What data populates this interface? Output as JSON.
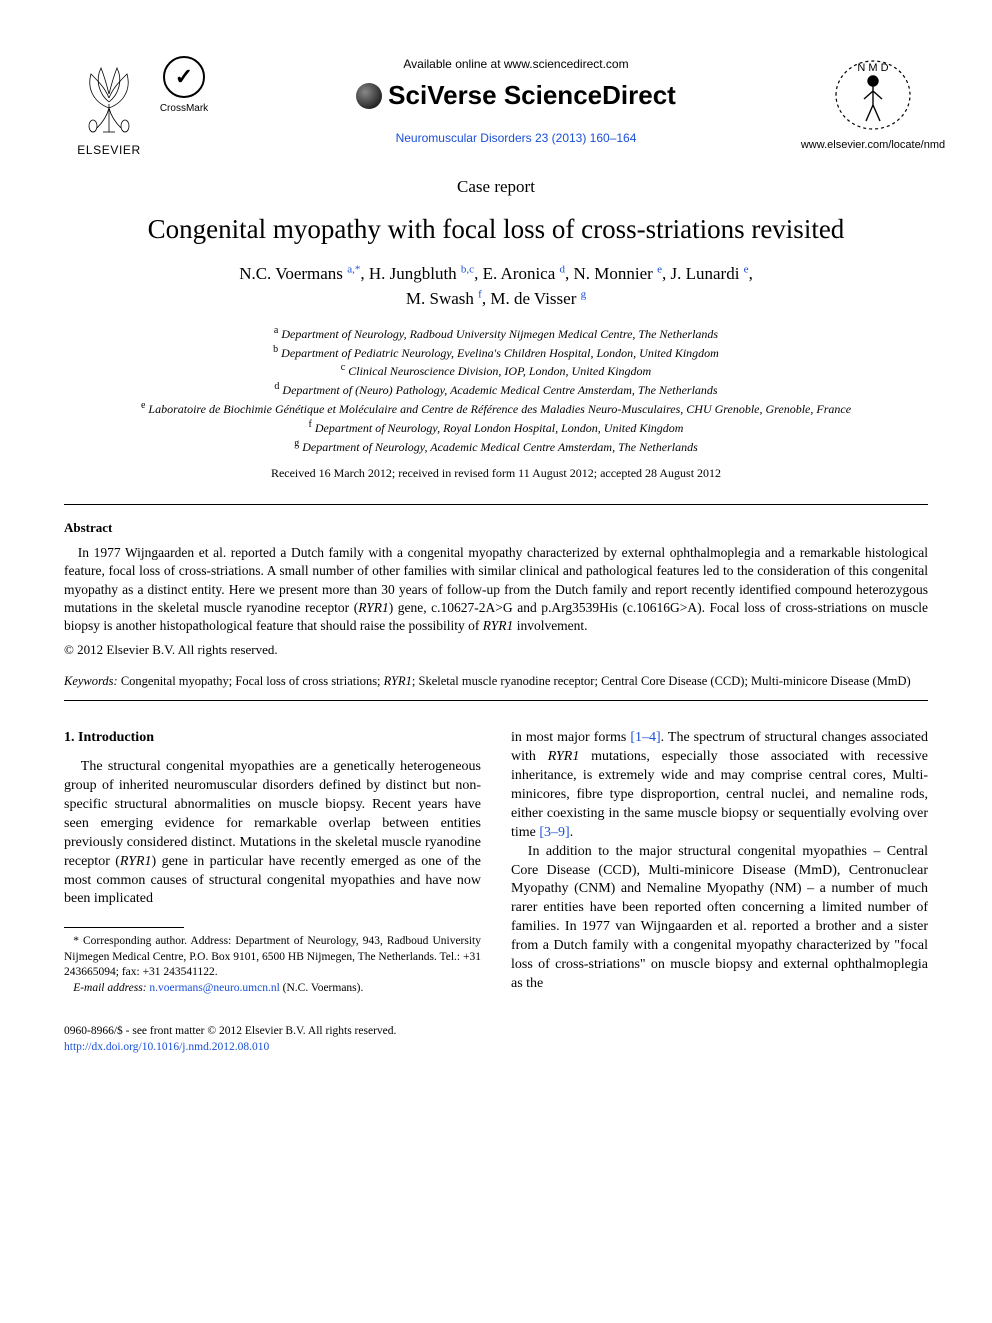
{
  "header": {
    "available_at": "Available online at www.sciencedirect.com",
    "brand": "SciVerse ScienceDirect",
    "journal_ref": "Neuromuscular Disorders 23 (2013) 160–164",
    "elsevier_label": "ELSEVIER",
    "crossmark_label": "CrossMark",
    "site_url": "www.elsevier.com/locate/nmd",
    "nmd_top": "N M D"
  },
  "article": {
    "type": "Case report",
    "title": "Congenital myopathy with focal loss of cross-striations revisited",
    "authors_html": "N.C. Voermans <sup>a,*</sup>, H. Jungbluth <sup>b,c</sup>, E. Aronica <sup>d</sup>, N. Monnier <sup>e</sup>, J. Lunardi <sup>e</sup>,<br>M. Swash <sup>f</sup>, M. de Visser <sup>g</sup>",
    "affiliations": [
      "a Department of Neurology, Radboud University Nijmegen Medical Centre, The Netherlands",
      "b Department of Pediatric Neurology, Evelina's Children Hospital, London, United Kingdom",
      "c Clinical Neuroscience Division, IOP, London, United Kingdom",
      "d Department of (Neuro) Pathology, Academic Medical Centre Amsterdam, The Netherlands",
      "e Laboratoire de Biochimie Génétique et Moléculaire and Centre de Référence des Maladies Neuro-Musculaires, CHU Grenoble, Grenoble, France",
      "f Department of Neurology, Royal London Hospital, London, United Kingdom",
      "g Department of Neurology, Academic Medical Centre Amsterdam, The Netherlands"
    ],
    "dates": "Received 16 March 2012; received in revised form 11 August 2012; accepted 28 August 2012"
  },
  "abstract": {
    "heading": "Abstract",
    "body": "In 1977 Wijngaarden et al. reported a Dutch family with a congenital myopathy characterized by external ophthalmoplegia and a remarkable histological feature, focal loss of cross-striations. A small number of other families with similar clinical and pathological features led to the consideration of this congenital myopathy as a distinct entity. Here we present more than 30 years of follow-up from the Dutch family and report recently identified compound heterozygous mutations in the skeletal muscle ryanodine receptor (RYR1) gene, c.10627-2A>G and p.Arg3539His (c.10616G>A). Focal loss of cross-striations on muscle biopsy is another histopathological feature that should raise the possibility of RYR1 involvement.",
    "copyright": "© 2012 Elsevier B.V. All rights reserved."
  },
  "keywords": {
    "label": "Keywords:",
    "text": "Congenital myopathy; Focal loss of cross striations; RYR1; Skeletal muscle ryanodine receptor; Central Core Disease (CCD); Multi-minicore Disease (MmD)"
  },
  "body": {
    "section1_heading": "1. Introduction",
    "p1": "The structural congenital myopathies are a genetically heterogeneous group of inherited neuromuscular disorders defined by distinct but non-specific structural abnormalities on muscle biopsy. Recent years have seen emerging evidence for remarkable overlap between entities previously considered distinct. Mutations in the skeletal muscle ryanodine receptor (RYR1) gene in particular have recently emerged as one of the most common causes of structural congenital myopathies and have now been implicated",
    "p2a": "in most major forms ",
    "p2_ref": "[1–4]",
    "p2b": ". The spectrum of structural changes associated with RYR1 mutations, especially those associated with recessive inheritance, is extremely wide and may comprise central cores, Multi-minicores, fibre type disproportion, central nuclei, and nemaline rods, either coexisting in the same muscle biopsy or sequentially evolving over time ",
    "p2_ref2": "[3–9]",
    "p2c": ".",
    "p3": "In addition to the major structural congenital myopathies – Central Core Disease (CCD), Multi-minicore Disease (MmD), Centronuclear Myopathy (CNM) and Nemaline Myopathy (NM) – a number of much rarer entities have been reported often concerning a limited number of families. In 1977 van Wijngaarden et al. reported a brother and a sister from a Dutch family with a congenital myopathy characterized by \"focal loss of cross-striations\" on muscle biopsy and external ophthalmoplegia as the"
  },
  "footnote": {
    "corresponding": "* Corresponding author. Address: Department of Neurology, 943, Radboud University Nijmegen Medical Centre, P.O. Box 9101, 6500 HB Nijmegen, The Netherlands. Tel.: +31 243665094; fax: +31 243541122.",
    "email_label": "E-mail address:",
    "email": "n.voermans@neuro.umcn.nl",
    "email_who": "(N.C. Voermans)."
  },
  "footer": {
    "issn": "0960-8966/$ - see front matter © 2012 Elsevier B.V. All rights reserved.",
    "doi": "http://dx.doi.org/10.1016/j.nmd.2012.08.010"
  },
  "colors": {
    "link": "#1a4fd6",
    "text": "#000000",
    "bg": "#ffffff"
  }
}
